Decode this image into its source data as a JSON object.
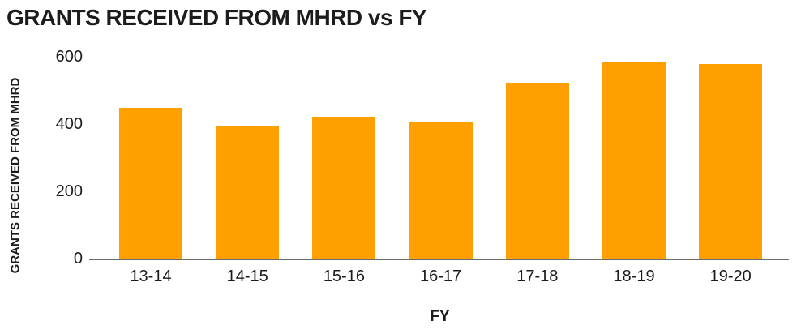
{
  "chart_data": {
    "type": "bar",
    "title": "GRANTS RECEIVED FROM MHRD vs FY",
    "categories": [
      "13-14",
      "14-15",
      "15-16",
      "16-17",
      "17-18",
      "18-19",
      "19-20"
    ],
    "values": [
      450,
      395,
      425,
      410,
      525,
      585,
      580
    ],
    "xlabel": "FY",
    "ylabel": "GRANTS RECEIVED FROM MHRD",
    "ylim": [
      0,
      600
    ],
    "yticks": [
      0,
      200,
      400,
      600
    ],
    "grid": false,
    "legend": false,
    "bar_color": "#FFA000",
    "axis_line_color": "#6B6B6B",
    "text_color": "#1C1C1C"
  }
}
